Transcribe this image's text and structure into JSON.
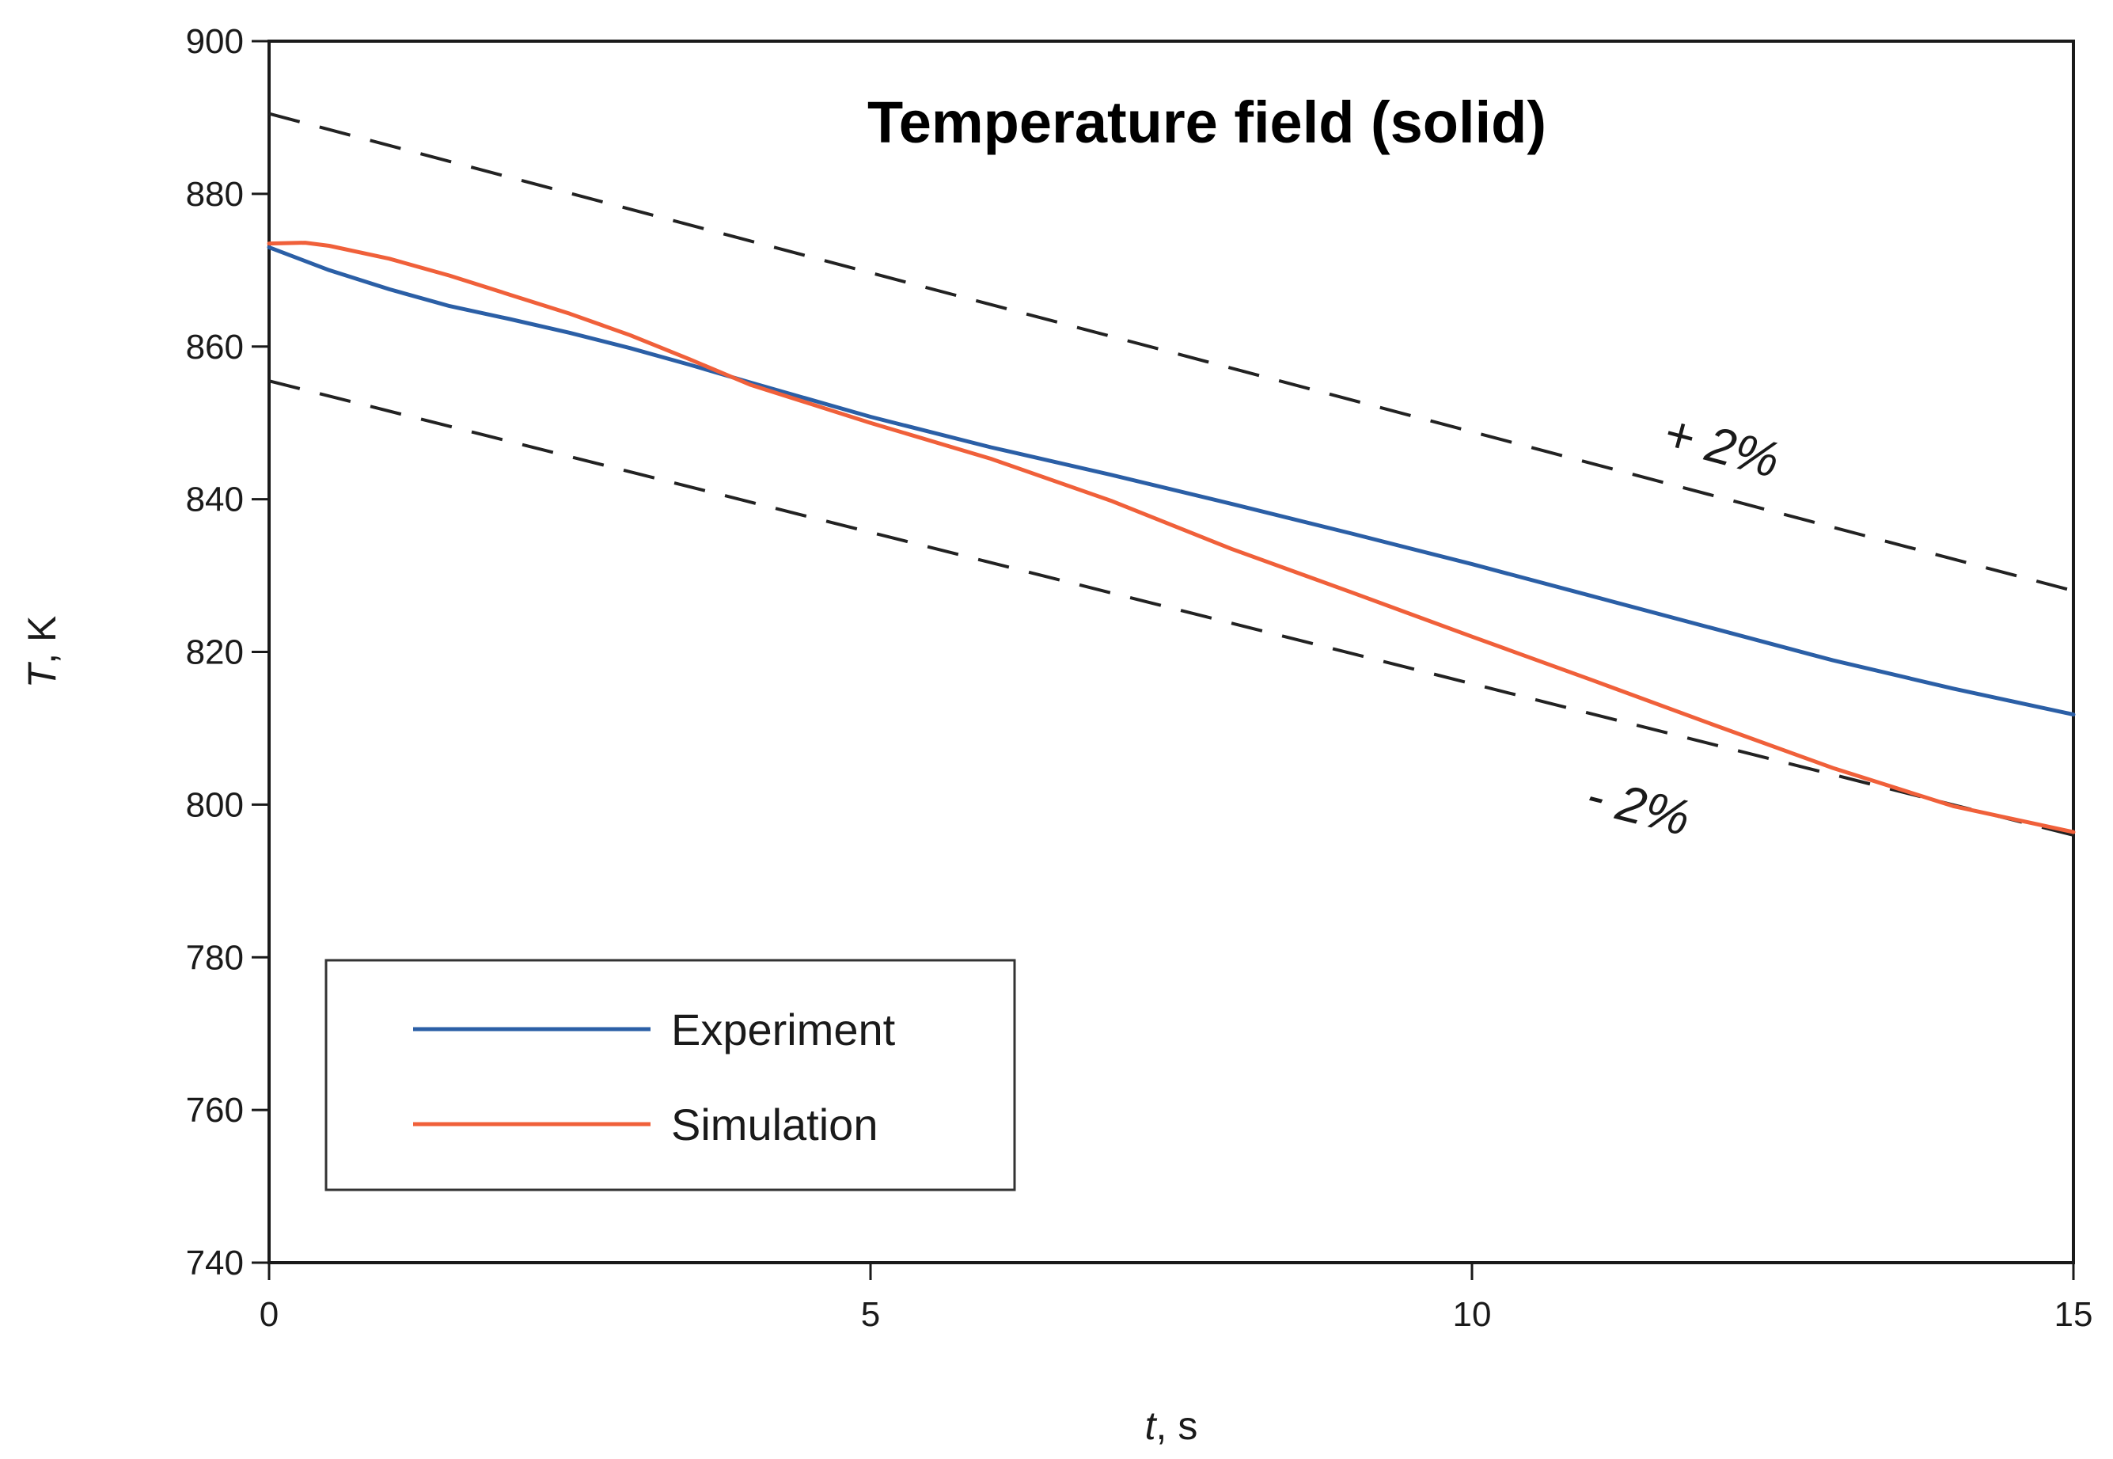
{
  "chart_data": {
    "type": "line",
    "title": "Temperature field (solid)",
    "xlabel_var": "t",
    "xlabel_unit": ", s",
    "ylabel_var": "T",
    "ylabel_unit": ", K",
    "xlim": [
      0,
      15
    ],
    "ylim": [
      740,
      900
    ],
    "xticks": [
      0,
      5,
      10,
      15
    ],
    "yticks": [
      740,
      760,
      780,
      800,
      820,
      840,
      860,
      880,
      900
    ],
    "grid": false,
    "legend_position": "bottom-left",
    "series": [
      {
        "name": "Experiment",
        "color": "#2b5fa6",
        "style": "solid",
        "x": [
          0,
          0.5,
          1,
          1.5,
          2,
          2.5,
          3,
          3.5,
          4,
          5,
          6,
          7,
          8,
          9,
          10,
          11,
          12,
          13,
          14,
          15
        ],
        "y": [
          873,
          870,
          867.5,
          865.3,
          863.6,
          861.8,
          859.8,
          857.6,
          855.3,
          850.8,
          846.8,
          843.2,
          839.4,
          835.5,
          831.5,
          827.3,
          823.1,
          818.9,
          815.2,
          811.8
        ]
      },
      {
        "name": "Simulation",
        "color": "#f0603a",
        "style": "solid",
        "x": [
          0,
          0.3,
          0.5,
          1,
          1.5,
          2,
          2.5,
          3,
          3.5,
          4,
          5,
          6,
          7,
          8,
          9,
          10,
          11,
          12,
          13,
          14,
          15
        ],
        "y": [
          873.5,
          873.6,
          873.2,
          871.5,
          869.3,
          866.8,
          864.3,
          861.5,
          858.3,
          855,
          850,
          845.3,
          839.8,
          833.5,
          827.8,
          822,
          816.3,
          810.5,
          804.8,
          799.8,
          796.4
        ]
      }
    ],
    "bands": [
      {
        "label": "+ 2%",
        "color": "#222222",
        "style": "dashed",
        "x": [
          0,
          15
        ],
        "y": [
          890.5,
          828
        ]
      },
      {
        "label": "- 2%",
        "color": "#222222",
        "style": "dashed",
        "x": [
          0,
          15
        ],
        "y": [
          855.5,
          796
        ]
      }
    ]
  }
}
